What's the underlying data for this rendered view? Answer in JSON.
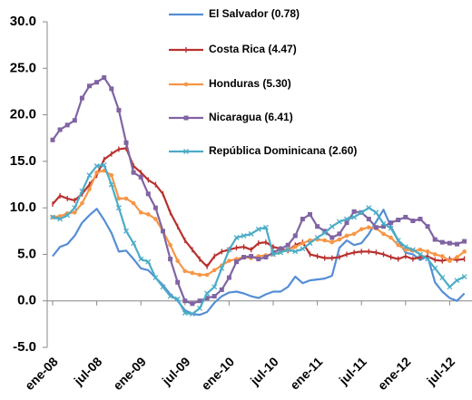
{
  "chart_data": {
    "type": "line",
    "categories": [
      "ene-08",
      null,
      null,
      null,
      null,
      null,
      "jul-08",
      null,
      null,
      null,
      null,
      null,
      "ene-09",
      null,
      null,
      null,
      null,
      null,
      "jul-09",
      null,
      null,
      null,
      null,
      null,
      "ene-10",
      null,
      null,
      null,
      null,
      null,
      "jul-10",
      null,
      null,
      null,
      null,
      null,
      "ene-11",
      null,
      null,
      null,
      null,
      null,
      "jul-11",
      null,
      null,
      null,
      null,
      null,
      "ene-12",
      null,
      null,
      null,
      null,
      null,
      "jul-12",
      null,
      null
    ],
    "ylim": [
      -5,
      30
    ],
    "yticks": [
      {
        "value": -5,
        "label": "-5.0"
      },
      {
        "value": 0,
        "label": "0.0"
      },
      {
        "value": 5,
        "label": "5.0"
      },
      {
        "value": 10,
        "label": "10.0"
      },
      {
        "value": 15,
        "label": "15.0"
      },
      {
        "value": 20,
        "label": "20.0"
      },
      {
        "value": 25,
        "label": "25.0"
      },
      {
        "value": 30,
        "label": "30.0"
      }
    ],
    "grid": false,
    "legend": "top",
    "series": [
      {
        "name": "El Salvador (0.78)",
        "color": "#558ED5",
        "marker": "none",
        "values": [
          4.8,
          5.8,
          6.1,
          7.0,
          8.4,
          9.2,
          9.9,
          8.7,
          7.3,
          5.3,
          5.4,
          4.5,
          3.5,
          3.3,
          2.5,
          1.7,
          0.7,
          0.0,
          -1.0,
          -1.4,
          -1.5,
          -1.2,
          -0.2,
          0.5,
          0.9,
          1.0,
          0.8,
          0.5,
          0.3,
          0.7,
          1.0,
          1.0,
          1.5,
          2.6,
          1.9,
          2.2,
          2.3,
          2.4,
          2.7,
          5.7,
          6.5,
          6.0,
          6.2,
          7.2,
          8.5,
          9.8,
          8.0,
          6.5,
          5.2,
          5.0,
          4.4,
          4.8,
          2.0,
          1.0,
          0.3,
          0.0,
          0.8
        ]
      },
      {
        "name": "Costa Rica (4.47)",
        "color": "#B8312F",
        "marker": "plus",
        "values": [
          10.4,
          11.3,
          11.0,
          10.8,
          11.5,
          12.5,
          13.5,
          15.2,
          15.8,
          16.3,
          16.4,
          14.5,
          13.8,
          13.0,
          12.5,
          11.5,
          9.5,
          8.0,
          6.5,
          5.5,
          4.5,
          3.7,
          4.8,
          5.3,
          5.5,
          5.7,
          5.8,
          5.5,
          6.2,
          6.3,
          5.8,
          5.6,
          5.4,
          6.0,
          6.3,
          5.0,
          4.8,
          4.6,
          4.6,
          4.7,
          5.0,
          5.2,
          5.3,
          5.3,
          5.2,
          5.0,
          4.7,
          4.5,
          4.8,
          4.5,
          4.7,
          4.8,
          4.4,
          4.3,
          4.5,
          4.4,
          4.5
        ]
      },
      {
        "name": "Honduras (5.30)",
        "color": "#F79646",
        "marker": "circle",
        "values": [
          9.0,
          9.1,
          9.4,
          9.5,
          10.5,
          12.0,
          13.8,
          14.0,
          13.5,
          11.0,
          11.0,
          10.5,
          9.5,
          9.3,
          8.8,
          7.5,
          6.0,
          4.3,
          3.2,
          3.0,
          2.8,
          2.8,
          3.3,
          3.8,
          4.3,
          4.5,
          4.7,
          4.6,
          4.8,
          4.9,
          5.0,
          5.3,
          5.5,
          5.8,
          6.2,
          6.5,
          6.6,
          6.5,
          6.3,
          6.6,
          7.0,
          7.2,
          7.7,
          7.9,
          7.8,
          7.2,
          6.8,
          6.0,
          5.5,
          5.4,
          5.5,
          5.3,
          5.0,
          4.8,
          4.3,
          4.7,
          5.3
        ]
      },
      {
        "name": "Nicaragua (6.41)",
        "color": "#8064A2",
        "marker": "square",
        "values": [
          17.3,
          18.4,
          18.9,
          19.4,
          21.8,
          23.1,
          23.5,
          24.0,
          22.8,
          20.5,
          17.0,
          13.8,
          13.3,
          11.5,
          10.0,
          7.5,
          4.5,
          2.0,
          0.0,
          -0.3,
          0.0,
          0.3,
          0.5,
          1.2,
          2.5,
          4.2,
          4.7,
          4.8,
          4.5,
          4.7,
          5.2,
          5.6,
          6.0,
          7.0,
          8.8,
          9.3,
          8.0,
          7.5,
          6.8,
          7.2,
          8.4,
          9.6,
          9.5,
          8.8,
          7.9,
          8.0,
          8.4,
          8.7,
          9.0,
          8.6,
          8.8,
          8.0,
          6.6,
          6.3,
          6.2,
          6.1,
          6.4
        ]
      },
      {
        "name": "República Dominicana (2.60)",
        "color": "#4BACC6",
        "marker": "x",
        "values": [
          9.0,
          8.8,
          9.2,
          10.0,
          11.8,
          13.5,
          14.5,
          14.6,
          12.5,
          10.0,
          7.5,
          6.2,
          4.5,
          4.2,
          2.5,
          1.5,
          0.5,
          0.2,
          -1.3,
          -1.4,
          -0.8,
          0.8,
          1.5,
          3.5,
          5.5,
          6.8,
          7.0,
          7.2,
          7.7,
          7.9,
          5.0,
          5.2,
          5.5,
          5.3,
          5.6,
          6.2,
          6.8,
          7.3,
          8.0,
          8.5,
          8.8,
          9.0,
          9.5,
          10.0,
          9.5,
          8.3,
          7.8,
          6.5,
          5.8,
          5.5,
          5.0,
          4.5,
          3.5,
          2.5,
          1.5,
          2.2,
          2.6
        ]
      }
    ]
  }
}
